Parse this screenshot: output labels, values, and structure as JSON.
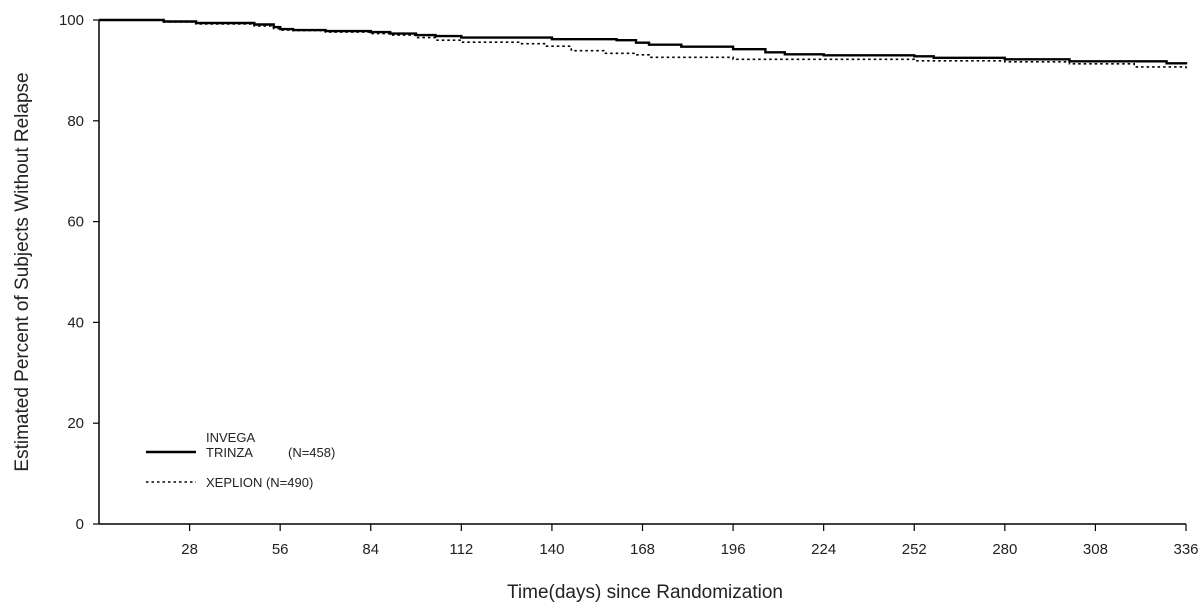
{
  "chart_data": {
    "type": "line",
    "xlabel": "Time(days) since Randomization",
    "ylabel": "Estimated Percent of Subjects Without Relapse",
    "xlim": [
      0,
      336
    ],
    "ylim": [
      0,
      100
    ],
    "x_ticks": [
      28,
      56,
      84,
      112,
      140,
      168,
      196,
      224,
      252,
      280,
      308,
      336
    ],
    "y_ticks": [
      0,
      20,
      40,
      60,
      80,
      100
    ],
    "grid": false,
    "legend_position": "bottom-left",
    "legend": [
      {
        "lines": [
          "INVEGA",
          "TRINZA"
        ],
        "suffix": "(N=458)",
        "style": "solid"
      },
      {
        "lines": [
          "XEPLION (N=490)"
        ],
        "suffix": "",
        "style": "dotted"
      }
    ],
    "series": [
      {
        "name": "INVEGA TRINZA",
        "style": "solid",
        "x": [
          0,
          14,
          20,
          30,
          48,
          54,
          56,
          60,
          70,
          84,
          90,
          98,
          104,
          112,
          140,
          160,
          166,
          170,
          180,
          196,
          206,
          212,
          224,
          252,
          258,
          280,
          300,
          330,
          336
        ],
        "y": [
          100,
          100,
          99.7,
          99.4,
          99.1,
          98.6,
          98.2,
          98.0,
          97.8,
          97.6,
          97.3,
          97.0,
          96.8,
          96.5,
          96.2,
          96.0,
          95.5,
          95.1,
          94.7,
          94.2,
          93.6,
          93.2,
          93.0,
          92.8,
          92.5,
          92.2,
          91.8,
          91.4,
          91.2
        ]
      },
      {
        "name": "XEPLION",
        "style": "dotted",
        "x": [
          0,
          14,
          20,
          30,
          48,
          54,
          56,
          60,
          70,
          84,
          90,
          98,
          104,
          112,
          130,
          138,
          146,
          156,
          166,
          170,
          196,
          224,
          252,
          280,
          300,
          320,
          336
        ],
        "y": [
          100,
          100,
          99.6,
          99.2,
          98.8,
          98.3,
          98.0,
          97.9,
          97.6,
          97.3,
          97.0,
          96.5,
          96.0,
          95.6,
          95.3,
          94.8,
          93.9,
          93.4,
          93.1,
          92.6,
          92.2,
          92.2,
          91.9,
          91.7,
          91.3,
          90.7,
          90.4
        ]
      }
    ]
  }
}
